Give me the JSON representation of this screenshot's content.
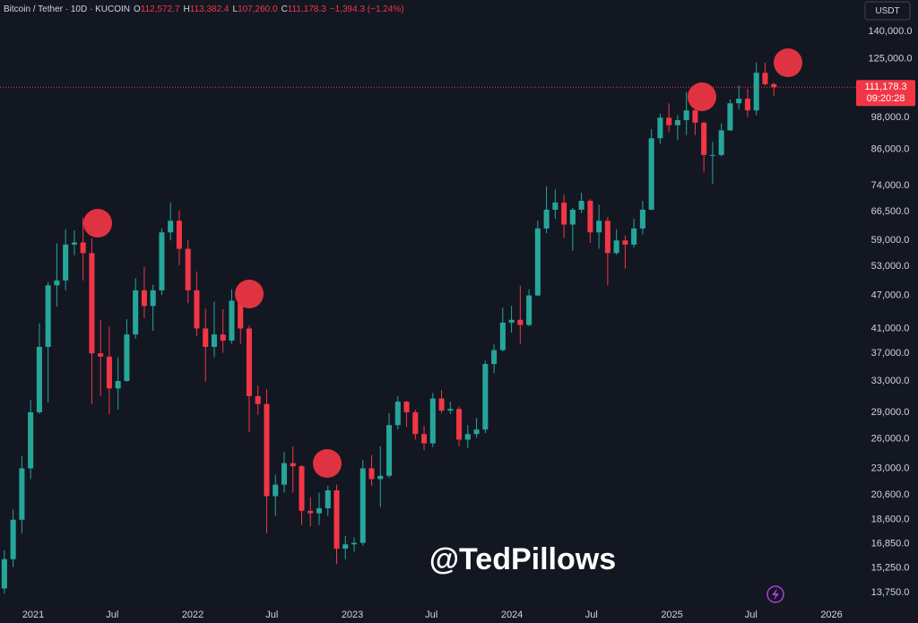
{
  "header": {
    "symbol": "Bitcoin / Tether · 10D · KUCOIN",
    "fields": [
      {
        "key": "O",
        "value": "112,572.7"
      },
      {
        "key": "H",
        "value": "113,382.4"
      },
      {
        "key": "L",
        "value": "107,260.0"
      },
      {
        "key": "C",
        "value": "111,178.3"
      }
    ],
    "change": "−1,394.3 (−1.24%)",
    "currency_button": "USDT"
  },
  "watermark": "@TedPillows",
  "chart_data": {
    "type": "candlestick",
    "log_scale": true,
    "grid": false,
    "up_color": "#26a69a",
    "down_color": "#f23645",
    "last_price_label": "111,178.3",
    "countdown": "09:20:28",
    "xlim": [
      "2020-10-17",
      "2026-02-16"
    ],
    "xticks": [
      {
        "value": "2021-01-01",
        "label": "2021"
      },
      {
        "value": "2021-07-01",
        "label": "Jul"
      },
      {
        "value": "2022-01-01",
        "label": "2022"
      },
      {
        "value": "2022-07-01",
        "label": "Jul"
      },
      {
        "value": "2023-01-01",
        "label": "2023"
      },
      {
        "value": "2023-07-01",
        "label": "Jul"
      },
      {
        "value": "2024-01-01",
        "label": "2024"
      },
      {
        "value": "2024-07-01",
        "label": "Jul"
      },
      {
        "value": "2025-01-01",
        "label": "2025"
      },
      {
        "value": "2025-07-01",
        "label": "Jul"
      },
      {
        "value": "2026-01-01",
        "label": "2026"
      }
    ],
    "ylim": [
      13070,
      159400
    ],
    "yticks": [
      {
        "value": 140000,
        "label": "140,000.0"
      },
      {
        "value": 125000,
        "label": "125,000.0"
      },
      {
        "value": 98000,
        "label": "98,000.0"
      },
      {
        "value": 86000,
        "label": "86,000.0"
      },
      {
        "value": 74000,
        "label": "74,000.0"
      },
      {
        "value": 66500,
        "label": "66,500.0"
      },
      {
        "value": 59000,
        "label": "59,000.0"
      },
      {
        "value": 53000,
        "label": "53,000.0"
      },
      {
        "value": 47000,
        "label": "47,000.0"
      },
      {
        "value": 41000,
        "label": "41,000.0"
      },
      {
        "value": 37000,
        "label": "37,000.0"
      },
      {
        "value": 33000,
        "label": "33,000.0"
      },
      {
        "value": 29000,
        "label": "29,000.0"
      },
      {
        "value": 26000,
        "label": "26,000.0"
      },
      {
        "value": 23000,
        "label": "23,000.0"
      },
      {
        "value": 20600,
        "label": "20,600.0"
      },
      {
        "value": 18600,
        "label": "18,600.0"
      },
      {
        "value": 16850,
        "label": "16,850.0"
      },
      {
        "value": 15250,
        "label": "15,250.0"
      },
      {
        "value": 13750,
        "label": "13,750.0"
      }
    ],
    "x": [
      "2020-10-27",
      "2020-11-16",
      "2020-12-06",
      "2020-12-26",
      "2021-01-15",
      "2021-02-04",
      "2021-02-24",
      "2021-03-16",
      "2021-04-05",
      "2021-04-25",
      "2021-05-15",
      "2021-06-04",
      "2021-06-24",
      "2021-07-14",
      "2021-08-03",
      "2021-08-23",
      "2021-09-12",
      "2021-10-02",
      "2021-10-22",
      "2021-11-11",
      "2021-12-01",
      "2021-12-21",
      "2022-01-10",
      "2022-01-30",
      "2022-02-19",
      "2022-03-11",
      "2022-03-31",
      "2022-04-20",
      "2022-05-10",
      "2022-05-30",
      "2022-06-19",
      "2022-07-09",
      "2022-07-29",
      "2022-08-18",
      "2022-09-07",
      "2022-09-27",
      "2022-10-17",
      "2022-11-06",
      "2022-11-26",
      "2022-12-16",
      "2023-01-05",
      "2023-01-25",
      "2023-02-14",
      "2023-03-06",
      "2023-03-26",
      "2023-04-15",
      "2023-05-05",
      "2023-05-25",
      "2023-06-14",
      "2023-07-04",
      "2023-07-24",
      "2023-08-13",
      "2023-09-02",
      "2023-09-22",
      "2023-10-12",
      "2023-11-01",
      "2023-11-21",
      "2023-12-11",
      "2023-12-31",
      "2024-01-20",
      "2024-02-09",
      "2024-02-29",
      "2024-03-20",
      "2024-04-09",
      "2024-04-29",
      "2024-05-19",
      "2024-06-08",
      "2024-06-28",
      "2024-07-18",
      "2024-08-07",
      "2024-08-27",
      "2024-09-16",
      "2024-10-06",
      "2024-10-26",
      "2024-11-15",
      "2024-12-05",
      "2024-12-25",
      "2025-01-14",
      "2025-02-03",
      "2025-02-23",
      "2025-03-15",
      "2025-04-04",
      "2025-04-24",
      "2025-05-14",
      "2025-06-03",
      "2025-06-23",
      "2025-07-13",
      "2025-08-02",
      "2025-08-22"
    ],
    "candles": [
      [
        14000,
        16400,
        13700,
        15800
      ],
      [
        15800,
        19400,
        15300,
        18600
      ],
      [
        18600,
        24200,
        17600,
        23000
      ],
      [
        23000,
        30500,
        22000,
        29000
      ],
      [
        29000,
        41900,
        28800,
        38000
      ],
      [
        38000,
        49700,
        30200,
        49000
      ],
      [
        49000,
        58300,
        44900,
        50000
      ],
      [
        50000,
        61800,
        48000,
        58000
      ],
      [
        58000,
        61500,
        55500,
        58500
      ],
      [
        58500,
        64800,
        50000,
        56000
      ],
      [
        56000,
        59500,
        30000,
        37000
      ],
      [
        37000,
        42500,
        31000,
        36500
      ],
      [
        36500,
        41300,
        28800,
        32000
      ],
      [
        32000,
        36400,
        29300,
        33000
      ],
      [
        33000,
        42600,
        32900,
        40000
      ],
      [
        40000,
        50500,
        39300,
        48000
      ],
      [
        48000,
        52900,
        42800,
        45000
      ],
      [
        45000,
        49100,
        40600,
        48000
      ],
      [
        48000,
        62000,
        47100,
        61000
      ],
      [
        61000,
        69000,
        59000,
        64000
      ],
      [
        64000,
        66800,
        53300,
        57000
      ],
      [
        57000,
        59100,
        45500,
        48000
      ],
      [
        48000,
        51900,
        39700,
        41000
      ],
      [
        41000,
        44500,
        32900,
        38000
      ],
      [
        38000,
        45800,
        36400,
        40000
      ],
      [
        40000,
        44400,
        37100,
        39000
      ],
      [
        39000,
        48200,
        38500,
        46000
      ],
      [
        46000,
        47400,
        38500,
        41000
      ],
      [
        41000,
        41500,
        26700,
        31000
      ],
      [
        31000,
        32400,
        28700,
        30000
      ],
      [
        30000,
        31900,
        17600,
        20500
      ],
      [
        20500,
        22400,
        18900,
        21500
      ],
      [
        21500,
        24600,
        20800,
        23500
      ],
      [
        23500,
        25200,
        20800,
        23200
      ],
      [
        23200,
        23300,
        18200,
        19300
      ],
      [
        19300,
        20400,
        18100,
        19100
      ],
      [
        19100,
        20800,
        18200,
        19500
      ],
      [
        19500,
        21400,
        18900,
        21000
      ],
      [
        21000,
        21500,
        15500,
        16500
      ],
      [
        16500,
        17400,
        15800,
        16800
      ],
      [
        16800,
        17300,
        16300,
        16900
      ],
      [
        16900,
        23800,
        16700,
        23000
      ],
      [
        23000,
        24300,
        21400,
        22000
      ],
      [
        22000,
        25200,
        19600,
        22300
      ],
      [
        22300,
        28900,
        22100,
        27500
      ],
      [
        27500,
        31000,
        27000,
        30300
      ],
      [
        30300,
        30400,
        27300,
        29000
      ],
      [
        29000,
        29300,
        25900,
        26500
      ],
      [
        26500,
        27400,
        24800,
        25500
      ],
      [
        25500,
        31400,
        25100,
        30700
      ],
      [
        30700,
        31800,
        28900,
        29200
      ],
      [
        29200,
        30300,
        28800,
        29400
      ],
      [
        29400,
        29700,
        25200,
        25900
      ],
      [
        25900,
        27500,
        25000,
        26500
      ],
      [
        26500,
        28300,
        26100,
        27000
      ],
      [
        27000,
        35900,
        26600,
        35400
      ],
      [
        35400,
        38400,
        34100,
        37500
      ],
      [
        37500,
        44700,
        37300,
        42000
      ],
      [
        42000,
        45000,
        40300,
        42500
      ],
      [
        42500,
        48900,
        38500,
        41600
      ],
      [
        41600,
        48200,
        41400,
        47000
      ],
      [
        47000,
        64000,
        46900,
        62000
      ],
      [
        62000,
        73800,
        60800,
        67000
      ],
      [
        67000,
        72800,
        64500,
        69000
      ],
      [
        69000,
        71300,
        59600,
        63000
      ],
      [
        63000,
        67500,
        56500,
        67000
      ],
      [
        67000,
        71900,
        66100,
        69500
      ],
      [
        69500,
        70000,
        58400,
        61000
      ],
      [
        61000,
        68400,
        57000,
        64000
      ],
      [
        64000,
        65000,
        49000,
        56000
      ],
      [
        56000,
        61800,
        55600,
        59000
      ],
      [
        59000,
        60200,
        52500,
        58000
      ],
      [
        58000,
        64500,
        57300,
        62000
      ],
      [
        62000,
        69500,
        60500,
        67000
      ],
      [
        67000,
        93500,
        66800,
        90000
      ],
      [
        90000,
        99600,
        88000,
        98000
      ],
      [
        98000,
        104000,
        92200,
        95000
      ],
      [
        95000,
        99000,
        89300,
        97000
      ],
      [
        97000,
        109000,
        91200,
        101000
      ],
      [
        101000,
        102500,
        91200,
        96000
      ],
      [
        96000,
        96500,
        78200,
        84000
      ],
      [
        84000,
        88700,
        74500,
        84000
      ],
      [
        84000,
        95700,
        83500,
        93000
      ],
      [
        93000,
        105700,
        92800,
        104000
      ],
      [
        104000,
        111900,
        101500,
        106000
      ],
      [
        106000,
        110500,
        98200,
        101000
      ],
      [
        101000,
        123200,
        99000,
        118000
      ],
      [
        118000,
        123000,
        112000,
        112572.7
      ],
      [
        112572.7,
        113382.4,
        107260,
        111178.3
      ]
    ]
  }
}
